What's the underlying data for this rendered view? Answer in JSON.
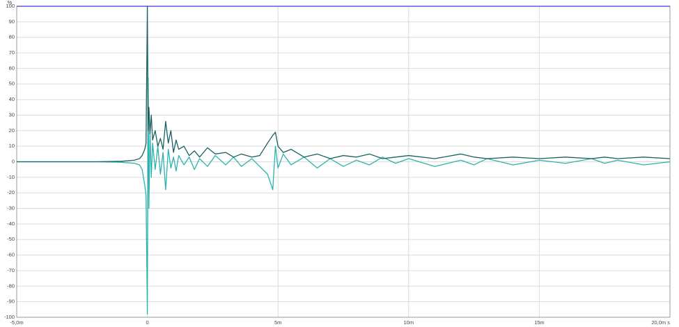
{
  "chart_data": {
    "type": "line",
    "y_label": "%",
    "x": [
      -5,
      -2,
      -1,
      -0.5,
      -0.3,
      -0.2,
      -0.1,
      -0.05,
      0,
      0.03,
      0.06,
      0.1,
      0.15,
      0.2,
      0.3,
      0.4,
      0.5,
      0.6,
      0.7,
      0.8,
      0.9,
      1.0,
      1.1,
      1.2,
      1.4,
      1.6,
      1.8,
      2.0,
      2.3,
      2.6,
      3.0,
      3.3,
      3.6,
      4.0,
      4.3,
      4.6,
      4.8,
      4.9,
      5.0,
      5.2,
      5.5,
      6,
      6.5,
      7,
      7.5,
      8,
      8.5,
      9,
      9.5,
      10,
      11,
      12,
      12.5,
      13,
      14,
      15,
      16,
      17,
      17.5,
      18,
      19,
      20
    ],
    "series": [
      {
        "color": "#2ab3ae",
        "values": [
          0,
          0,
          -0.3,
          -1,
          -2,
          -5,
          -15,
          -22,
          -98,
          54,
          -30,
          20,
          -10,
          12,
          -5,
          10,
          -8,
          6,
          -18,
          8,
          -4,
          3,
          -6,
          4,
          -2,
          3,
          -5,
          2,
          -3,
          4,
          -2,
          3,
          -3,
          2,
          -3,
          -8,
          -18,
          10,
          -4,
          5,
          -2,
          3,
          -4,
          2,
          -3,
          1,
          -2,
          3,
          -1,
          2,
          -3,
          1,
          -2,
          2,
          -2,
          1,
          -1,
          2,
          -1,
          1,
          -2,
          0
        ]
      },
      {
        "color": "#17615f",
        "values": [
          0,
          0,
          0.3,
          1,
          2,
          4,
          8,
          12,
          100,
          20,
          35,
          18,
          30,
          14,
          20,
          10,
          15,
          8,
          26,
          12,
          20,
          6,
          14,
          8,
          10,
          4,
          7,
          3,
          9,
          5,
          6,
          3,
          5,
          3,
          4,
          12,
          17,
          19,
          10,
          6,
          8,
          3,
          5,
          2,
          4,
          3,
          5,
          2,
          3,
          4,
          2,
          5,
          3,
          2,
          3,
          2,
          3,
          2,
          3,
          2,
          3,
          2
        ]
      }
    ],
    "xlim": [
      -5,
      20
    ],
    "xticks": [
      {
        "value": -5,
        "label": "-5,0m"
      },
      0,
      {
        "value": 5,
        "label": "5m"
      },
      {
        "value": 10,
        "label": "10m"
      },
      {
        "value": 15,
        "label": "15m"
      },
      {
        "value": 20,
        "label": "20,0m s"
      }
    ],
    "ylim": [
      -100,
      100
    ],
    "yticks": [
      100,
      90,
      80,
      70,
      60,
      50,
      40,
      30,
      20,
      10,
      0,
      -10,
      -20,
      -30,
      -40,
      -50,
      -60,
      -70,
      -80,
      -90,
      -100
    ],
    "grid": true
  }
}
